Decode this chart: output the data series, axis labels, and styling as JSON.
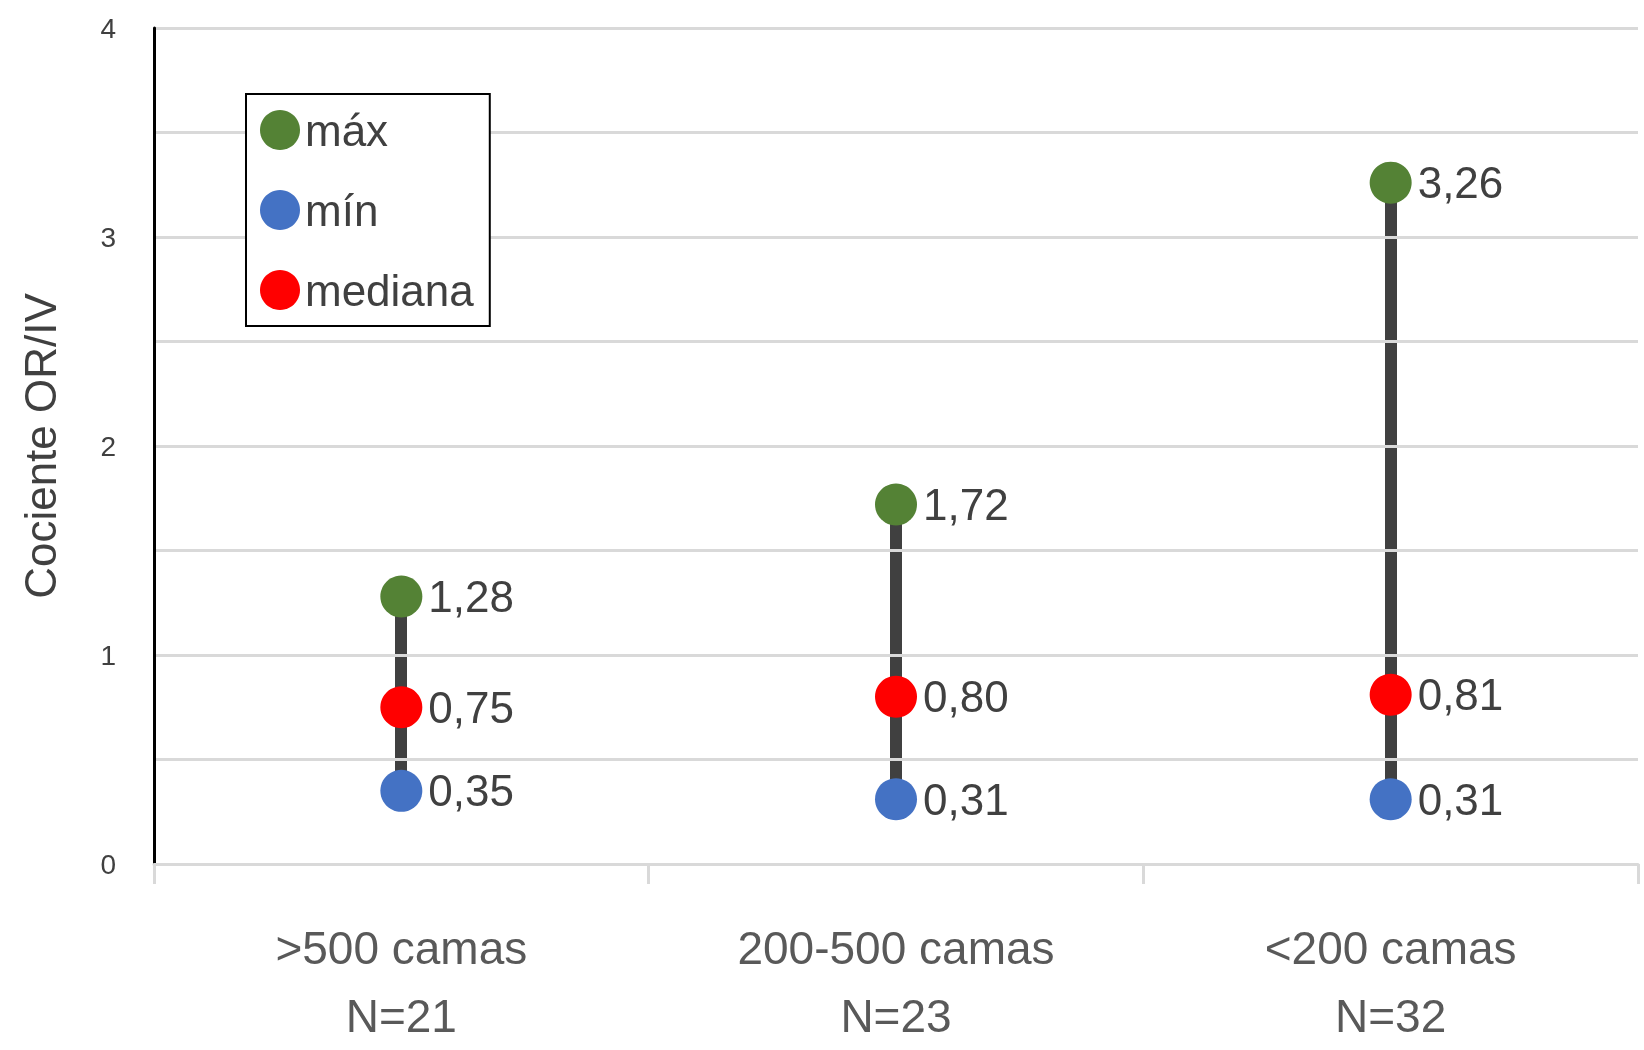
{
  "chart_data": {
    "type": "scatter",
    "ylabel": "Cociente OR/IV",
    "categories": [
      ">500 camas\nN=21",
      "200-500 camas\nN=23",
      "<200 camas\nN=32"
    ],
    "ylim": [
      0,
      4
    ],
    "yticks": [
      0,
      {
        "value": 0.5,
        "label": null
      },
      1,
      {
        "value": 1.5,
        "label": null
      },
      2,
      {
        "value": 2.5,
        "label": null
      },
      3,
      {
        "value": 3.5,
        "label": null
      },
      4
    ],
    "grid": "y",
    "legend": "top left",
    "marker": "circle",
    "series": [
      {
        "name": "máx",
        "color": "#548235",
        "values": [
          1.28,
          1.72,
          3.26
        ],
        "value_labels": [
          "1,28",
          "1,72",
          "3,26"
        ]
      },
      {
        "name": "mín",
        "color": "#4472c4",
        "values": [
          0.35,
          0.31,
          0.31
        ],
        "value_labels": [
          "0,35",
          "0,31",
          "0,31"
        ]
      },
      {
        "name": "mediana",
        "color": "#ff0000",
        "values": [
          0.75,
          0.8,
          0.81
        ],
        "value_labels": [
          "0,75",
          "0,80",
          "0,81"
        ]
      }
    ]
  }
}
